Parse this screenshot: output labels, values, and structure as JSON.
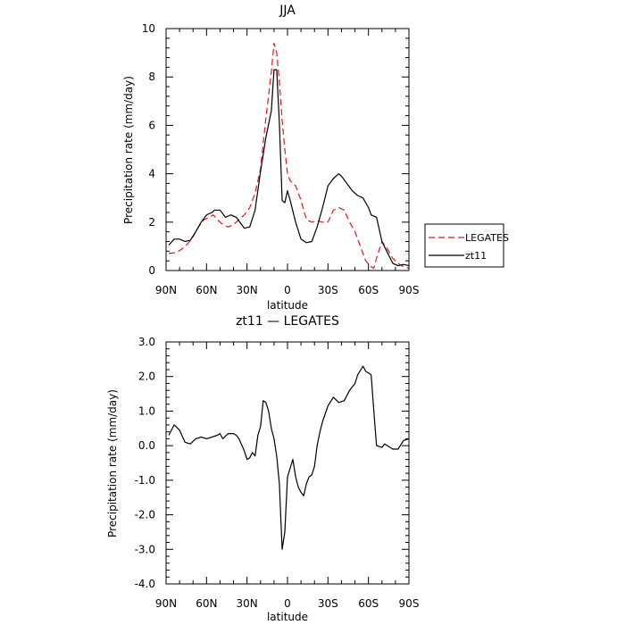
{
  "chart_data": [
    {
      "type": "line",
      "title": "JJA",
      "xlabel": "latitude",
      "ylabel": "Precipitation rate (mm/day)",
      "x_tick_labels": [
        "90N",
        "60N",
        "30N",
        "0",
        "30S",
        "60S",
        "90S"
      ],
      "x_tick_values": [
        90,
        60,
        30,
        0,
        -30,
        -60,
        -90
      ],
      "y_tick_labels": [
        "0",
        "2",
        "4",
        "6",
        "8",
        "10"
      ],
      "y_tick_values": [
        0,
        2,
        4,
        6,
        8,
        10
      ],
      "xlim": [
        90,
        -90
      ],
      "ylim": [
        0,
        10
      ],
      "legend_position": "outside-right",
      "series": [
        {
          "name": "LEGATES",
          "color": "#e8141c",
          "dash": "dashed",
          "x": [
            88,
            82,
            78,
            74,
            70,
            66,
            62,
            58,
            55,
            52,
            48,
            44,
            40,
            36,
            32,
            28,
            24,
            20,
            16,
            12,
            10,
            8,
            6,
            4,
            2,
            0,
            -2,
            -6,
            -10,
            -14,
            -18,
            -22,
            -26,
            -30,
            -34,
            -38,
            -42,
            -46,
            -50,
            -54,
            -58,
            -62,
            -64,
            -66,
            -70,
            -74,
            -78,
            -82,
            -86,
            -90
          ],
          "y": [
            0.7,
            0.75,
            0.9,
            1.1,
            1.4,
            1.8,
            2.1,
            2.2,
            2.3,
            2.1,
            1.9,
            1.8,
            1.9,
            2.1,
            2.3,
            2.6,
            3.2,
            4.2,
            6.3,
            8.2,
            9.4,
            9.0,
            7.8,
            6.2,
            5.0,
            4.0,
            3.7,
            3.5,
            2.9,
            2.1,
            2.0,
            2.05,
            2.0,
            2.0,
            2.5,
            2.6,
            2.5,
            2.0,
            1.6,
            1.0,
            0.4,
            0.15,
            0.1,
            0.5,
            1.2,
            0.9,
            0.5,
            0.3,
            0.15,
            0.1
          ]
        },
        {
          "name": "zt11",
          "color": "#000000",
          "dash": "solid",
          "x": [
            88,
            84,
            80,
            76,
            72,
            68,
            64,
            60,
            56,
            54,
            50,
            46,
            42,
            38,
            34,
            32,
            28,
            24,
            20,
            16,
            12,
            10,
            8,
            6,
            4,
            2,
            0,
            -2,
            -6,
            -10,
            -14,
            -18,
            -22,
            -26,
            -30,
            -34,
            -38,
            -40,
            -44,
            -48,
            -52,
            -56,
            -60,
            -62,
            -66,
            -70,
            -74,
            -78,
            -82,
            -86,
            -90
          ],
          "y": [
            1.05,
            1.3,
            1.3,
            1.2,
            1.25,
            1.6,
            2.0,
            2.3,
            2.4,
            2.5,
            2.5,
            2.2,
            2.3,
            2.2,
            1.9,
            1.75,
            1.8,
            2.5,
            4.1,
            5.5,
            6.6,
            8.3,
            8.3,
            6.1,
            2.9,
            2.8,
            3.3,
            2.9,
            2.0,
            1.3,
            1.15,
            1.2,
            1.8,
            2.6,
            3.5,
            3.8,
            4.0,
            3.9,
            3.6,
            3.3,
            3.1,
            3.0,
            2.6,
            2.3,
            2.2,
            1.2,
            0.75,
            0.3,
            0.2,
            0.25,
            0.2
          ]
        }
      ]
    },
    {
      "type": "line",
      "title": "zt11 — LEGATES",
      "xlabel": "latitude",
      "ylabel": "Precipitation rate (mm/day)",
      "x_tick_labels": [
        "90N",
        "60N",
        "30N",
        "0",
        "30S",
        "60S",
        "90S"
      ],
      "x_tick_values": [
        90,
        60,
        30,
        0,
        -30,
        -60,
        -90
      ],
      "y_tick_labels": [
        "3.0",
        "2.0",
        "1.0",
        "0.0",
        "-1.0",
        "-2.0",
        "-3.0",
        "-4.0"
      ],
      "y_tick_values": [
        3,
        2,
        1,
        0,
        -1,
        -2,
        -3,
        -4
      ],
      "xlim": [
        90,
        -90
      ],
      "ylim": [
        -4,
        3
      ],
      "series": [
        {
          "color": "#000000",
          "dash": "solid",
          "x": [
            88,
            84,
            80,
            76,
            72,
            68,
            64,
            60,
            56,
            52,
            50,
            48,
            44,
            40,
            38,
            36,
            32,
            30,
            28,
            26,
            24,
            22,
            20,
            18,
            16,
            14,
            12,
            10,
            8,
            6,
            4,
            2,
            0,
            -4,
            -6,
            -8,
            -10,
            -12,
            -14,
            -16,
            -18,
            -20,
            -22,
            -24,
            -26,
            -30,
            -34,
            -38,
            -42,
            -46,
            -50,
            -52,
            -56,
            -58,
            -60,
            -62,
            -64,
            -66,
            -70,
            -72,
            -74,
            -78,
            -82,
            -86,
            -90
          ],
          "y": [
            0.3,
            0.6,
            0.45,
            0.1,
            0.05,
            0.2,
            0.25,
            0.2,
            0.25,
            0.3,
            0.35,
            0.2,
            0.35,
            0.35,
            0.3,
            0.2,
            -0.15,
            -0.4,
            -0.35,
            -0.2,
            -0.3,
            0.3,
            0.55,
            1.3,
            1.25,
            1.0,
            0.5,
            0.2,
            -0.3,
            -1.1,
            -3.0,
            -2.5,
            -0.9,
            -0.4,
            -0.9,
            -1.2,
            -1.35,
            -1.45,
            -1.1,
            -0.9,
            -0.85,
            -0.6,
            0.0,
            0.4,
            0.7,
            1.15,
            1.4,
            1.25,
            1.3,
            1.6,
            1.8,
            2.05,
            2.3,
            2.15,
            2.1,
            2.05,
            1.0,
            0.0,
            -0.05,
            0.05,
            0.0,
            -0.1,
            -0.1,
            0.15,
            0.2
          ]
        }
      ]
    }
  ]
}
